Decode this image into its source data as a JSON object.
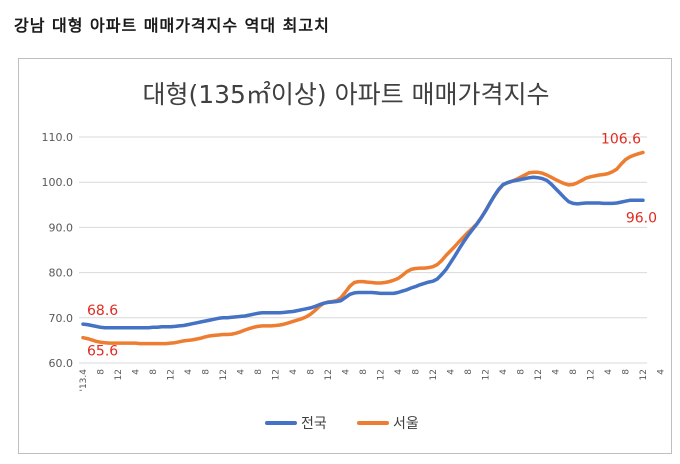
{
  "headline": "강남 대형 아파트 매매가격지수 역대 최고치",
  "chart_data": {
    "type": "line",
    "title": "대형(135㎡이상) 아파트 매매가격지수",
    "xlabel": "",
    "ylabel": "",
    "ylim": [
      60,
      110
    ],
    "yticks": [
      "60.0",
      "70.0",
      "80.0",
      "90.0",
      "100.0",
      "110.0"
    ],
    "grid": true,
    "legend_position": "bottom",
    "x_tick_labels": [
      "'13.4",
      "8",
      "12",
      "4",
      "8",
      "12",
      "4",
      "8",
      "12",
      "4",
      "8",
      "12",
      "4",
      "8",
      "12",
      "4",
      "8",
      "12",
      "4",
      "8",
      "12",
      "4",
      "8",
      "12",
      "4",
      "8",
      "12",
      "4",
      "8",
      "12",
      "4",
      "8",
      "12",
      "4",
      "8",
      "12"
    ],
    "series": [
      {
        "name": "전국",
        "color": "#4472c4",
        "values": [
          68.6,
          68.5,
          68.3,
          68.1,
          67.9,
          67.8,
          67.8,
          67.8,
          67.8,
          67.8,
          67.8,
          67.8,
          67.8,
          67.8,
          67.8,
          67.8,
          67.9,
          67.9,
          68.0,
          68.0,
          68.0,
          68.1,
          68.2,
          68.3,
          68.5,
          68.7,
          68.9,
          69.1,
          69.3,
          69.5,
          69.7,
          69.9,
          70.0,
          70.0,
          70.1,
          70.2,
          70.3,
          70.4,
          70.6,
          70.8,
          71.0,
          71.1,
          71.1,
          71.1,
          71.1,
          71.1,
          71.2,
          71.3,
          71.4,
          71.6,
          71.8,
          72.0,
          72.2,
          72.5,
          72.9,
          73.2,
          73.4,
          73.5,
          73.6,
          73.8,
          74.5,
          75.2,
          75.5,
          75.6,
          75.6,
          75.6,
          75.6,
          75.5,
          75.4,
          75.4,
          75.4,
          75.4,
          75.6,
          75.9,
          76.2,
          76.6,
          76.9,
          77.3,
          77.6,
          77.9,
          78.1,
          78.6,
          79.6,
          80.7,
          82.2,
          83.7,
          85.3,
          86.8,
          88.2,
          89.5,
          90.7,
          92.1,
          93.6,
          95.3,
          97.0,
          98.4,
          99.5,
          99.9,
          100.2,
          100.4,
          100.6,
          100.8,
          101.0,
          101.1,
          101.0,
          100.8,
          100.4,
          99.6,
          98.6,
          97.6,
          96.6,
          95.7,
          95.3,
          95.2,
          95.3,
          95.4,
          95.4,
          95.4,
          95.4,
          95.3,
          95.3,
          95.3,
          95.4,
          95.6,
          95.8,
          96.0,
          96.0,
          96.0,
          96.0
        ]
      },
      {
        "name": "서울",
        "color": "#ed7d31",
        "values": [
          65.6,
          65.4,
          65.1,
          64.8,
          64.6,
          64.5,
          64.4,
          64.4,
          64.4,
          64.4,
          64.4,
          64.4,
          64.4,
          64.3,
          64.3,
          64.3,
          64.3,
          64.3,
          64.3,
          64.3,
          64.4,
          64.5,
          64.7,
          64.9,
          65.0,
          65.1,
          65.3,
          65.5,
          65.8,
          66.0,
          66.1,
          66.2,
          66.3,
          66.3,
          66.4,
          66.6,
          66.9,
          67.3,
          67.6,
          67.9,
          68.1,
          68.2,
          68.2,
          68.2,
          68.3,
          68.4,
          68.6,
          68.9,
          69.2,
          69.5,
          69.8,
          70.2,
          70.8,
          71.6,
          72.5,
          73.2,
          73.5,
          73.6,
          73.8,
          74.5,
          75.7,
          77.0,
          77.8,
          78.0,
          78.0,
          77.9,
          77.8,
          77.7,
          77.7,
          77.8,
          78.0,
          78.3,
          78.7,
          79.4,
          80.2,
          80.7,
          80.9,
          81.0,
          81.0,
          81.1,
          81.3,
          81.8,
          82.7,
          83.8,
          84.8,
          85.8,
          86.9,
          87.9,
          88.9,
          89.8,
          90.8,
          92.1,
          93.7,
          95.4,
          96.9,
          98.3,
          99.4,
          99.9,
          100.2,
          100.6,
          101.1,
          101.6,
          102.1,
          102.2,
          102.2,
          102.0,
          101.6,
          101.1,
          100.6,
          100.1,
          99.7,
          99.4,
          99.5,
          99.9,
          100.4,
          100.9,
          101.2,
          101.4,
          101.6,
          101.7,
          101.9,
          102.3,
          102.9,
          104.0,
          105.0,
          105.6,
          106.0,
          106.3,
          106.6
        ]
      }
    ],
    "annotations": [
      {
        "series": "전국",
        "point": "start",
        "text": "68.6"
      },
      {
        "series": "서울",
        "point": "start",
        "text": "65.6"
      },
      {
        "series": "서울",
        "point": "end",
        "text": "106.6"
      },
      {
        "series": "전국",
        "point": "end",
        "text": "96.0"
      }
    ]
  }
}
